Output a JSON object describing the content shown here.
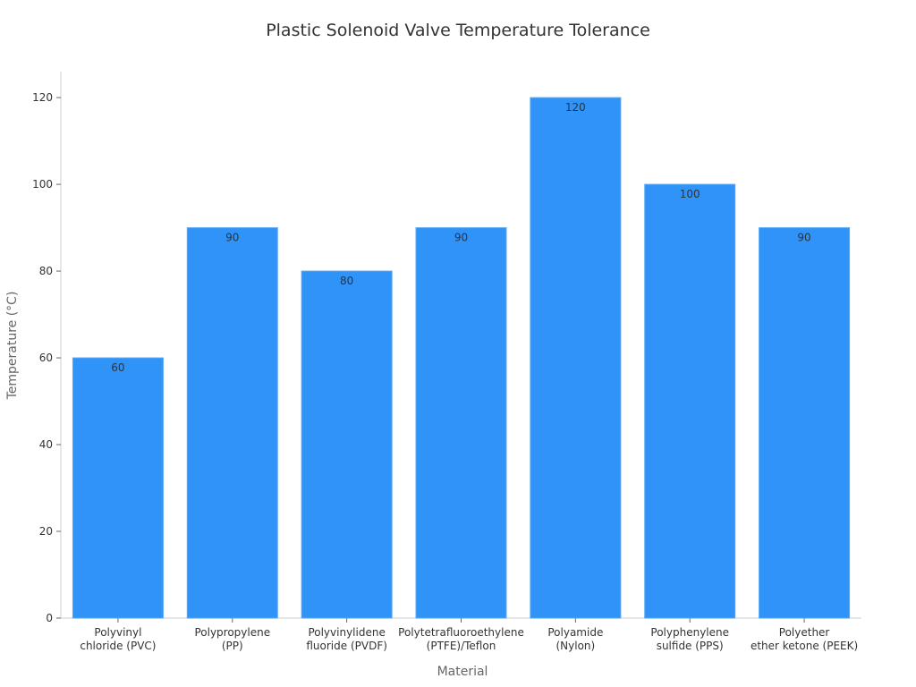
{
  "chart_data": {
    "type": "bar",
    "title": "Plastic Solenoid Valve Temperature Tolerance",
    "xlabel": "Material",
    "ylabel": "Temperature (°C)",
    "categories": [
      [
        "Polyvinyl",
        "chloride (PVC)"
      ],
      [
        "Polypropylene",
        "(PP)"
      ],
      [
        "Polyvinylidene",
        "fluoride (PVDF)"
      ],
      [
        "Polytetrafluoroethylene",
        "(PTFE)/Teflon"
      ],
      [
        "Polyamide",
        "(Nylon)"
      ],
      [
        "Polyphenylene",
        "sulfide (PPS)"
      ],
      [
        "Polyether",
        "ether ketone (PEEK)"
      ]
    ],
    "values": [
      60,
      90,
      80,
      90,
      120,
      100,
      90
    ],
    "ylim": [
      0,
      126
    ],
    "yticks": [
      0,
      20,
      40,
      60,
      80,
      100,
      120
    ],
    "grid": false,
    "bar_color": "#2f93f8",
    "data_labels": true
  }
}
